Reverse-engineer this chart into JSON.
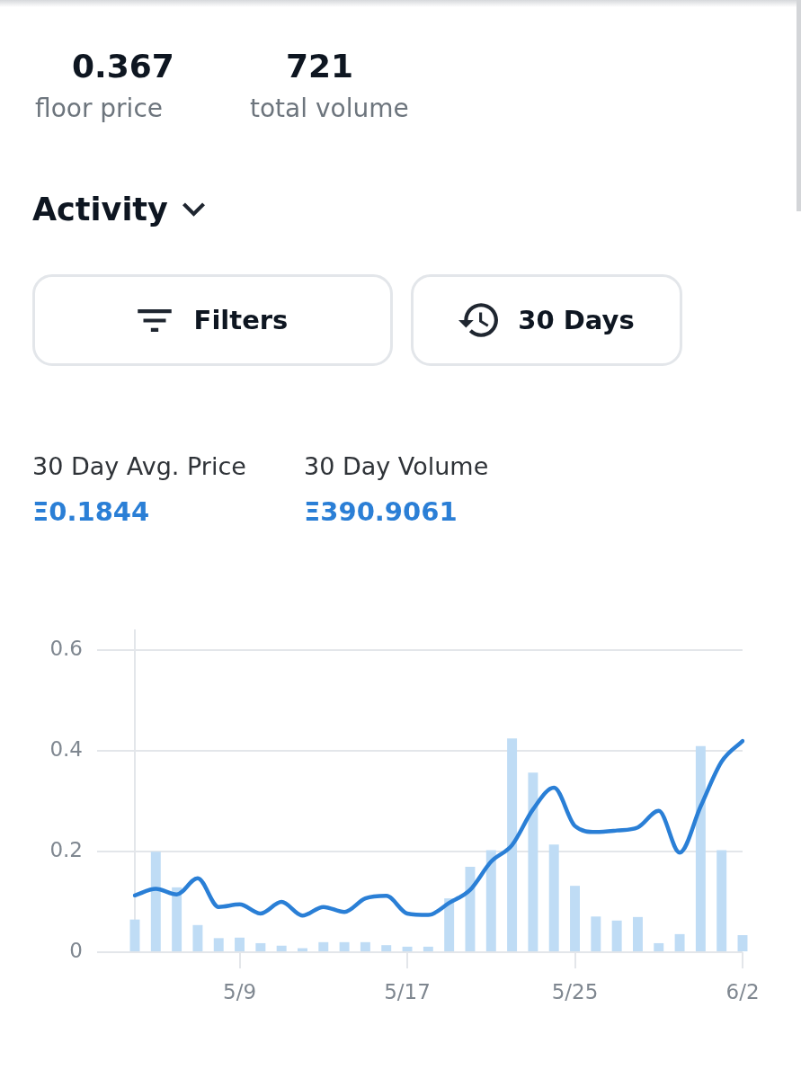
{
  "chart_data": [
    {
      "type": "other",
      "annotations": [
        "0.367",
        "floor price",
        "721",
        "total volume",
        "Activity",
        "Filters",
        "30 Days",
        "30 Day Avg. Price",
        "Ξ0.1844",
        "30 Day Volume",
        "Ξ390.9061"
      ]
    },
    {
      "type": "bar",
      "categories": [
        null,
        null,
        null,
        null,
        null,
        "5/9",
        null,
        null,
        null,
        null,
        null,
        null,
        null,
        "5/17",
        null,
        null,
        null,
        null,
        null,
        null,
        null,
        "5/25",
        null,
        null,
        null,
        null,
        null,
        null,
        null,
        "6/2"
      ],
      "series": [
        {
          "color": "#bfdcf5",
          "values": [
            0.065,
            0.2,
            0.129,
            0.054,
            0.028,
            0.029,
            0.018,
            0.013,
            0.008,
            0.02,
            0.02,
            0.02,
            0.014,
            0.011,
            0.011,
            0.107,
            0.17,
            0.203,
            0.425,
            0.357,
            0.214,
            0.132,
            0.071,
            0.063,
            0.07,
            0.018,
            0.036,
            0.41,
            0.203,
            0.034
          ]
        },
        {
          "type": "line",
          "color": "#2a7fd6",
          "values": [
            0.113,
            0.126,
            0.115,
            0.147,
            0.09,
            0.095,
            0.077,
            0.1,
            0.073,
            0.09,
            0.08,
            0.107,
            0.112,
            0.077,
            0.074,
            0.098,
            0.124,
            0.18,
            0.213,
            0.284,
            0.327,
            0.251,
            0.239,
            0.242,
            0.248,
            0.281,
            0.198,
            0.29,
            0.379,
            0.42
          ]
        }
      ],
      "ylim": [
        0,
        0.64
      ],
      "yticks": [
        0,
        0.2,
        0.4,
        0.6
      ],
      "grid": "y"
    }
  ]
}
